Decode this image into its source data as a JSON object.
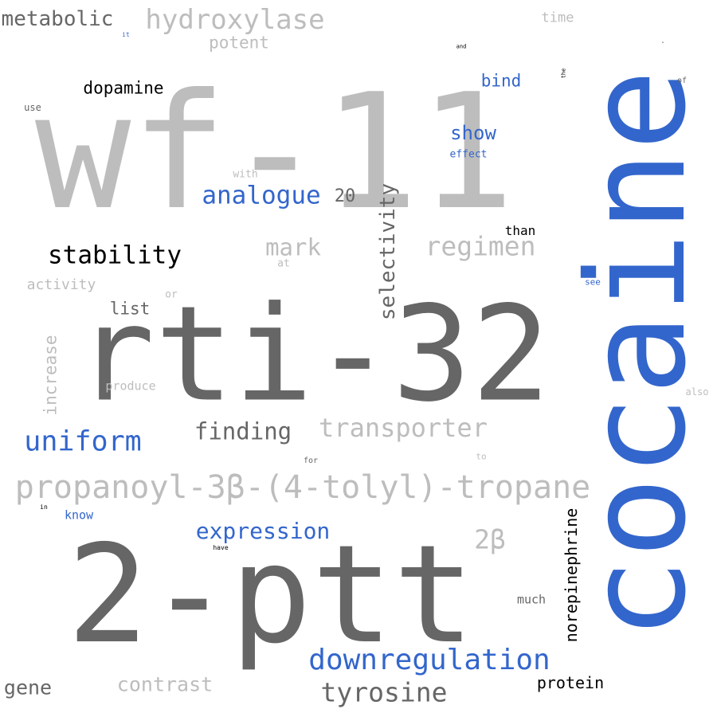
{
  "palette": {
    "background": "#ffffff",
    "black": "#000000",
    "dark_gray": "#666666",
    "light_gray": "#bdbdbd",
    "blue": "#3366cc"
  },
  "words": {
    "wf11": "wf-11",
    "cocaine": "cocaine",
    "rti32": "rti-32",
    "ptt2": "2-ptt",
    "propanoyl": "propanoyl-3β-(4-tolyl)-tropane",
    "hydroxylase": "hydroxylase",
    "metabolic": "metabolic",
    "potent": "potent",
    "time": "time",
    "dopamine": "dopamine",
    "bind": "bind",
    "show": "show",
    "effect": "effect",
    "analogue": "analogue",
    "num20": "20",
    "selectivity": "selectivity",
    "stability": "stability",
    "mark": "mark",
    "regimen": "regimen",
    "than": "than",
    "activity": "activity",
    "list": "list",
    "increase": "increase",
    "produce": "produce",
    "uniform": "uniform",
    "finding": "finding",
    "transporter": "transporter",
    "expression": "expression",
    "beta2": "2β",
    "norepinephrine": "norepinephrine",
    "downregulation": "downregulation",
    "tyrosine": "tyrosine",
    "protein": "protein",
    "gene": "gene",
    "contrast": "contrast",
    "much": "much",
    "know": "know",
    "use": "use",
    "with": "with",
    "at": "at",
    "or": "or",
    "also": "also",
    "see": "see",
    "of": "of",
    "it": "it",
    "and": "and",
    "the": "the",
    "for": "for",
    "to": "to",
    "in": "in",
    "have": "have",
    "dot": "."
  }
}
